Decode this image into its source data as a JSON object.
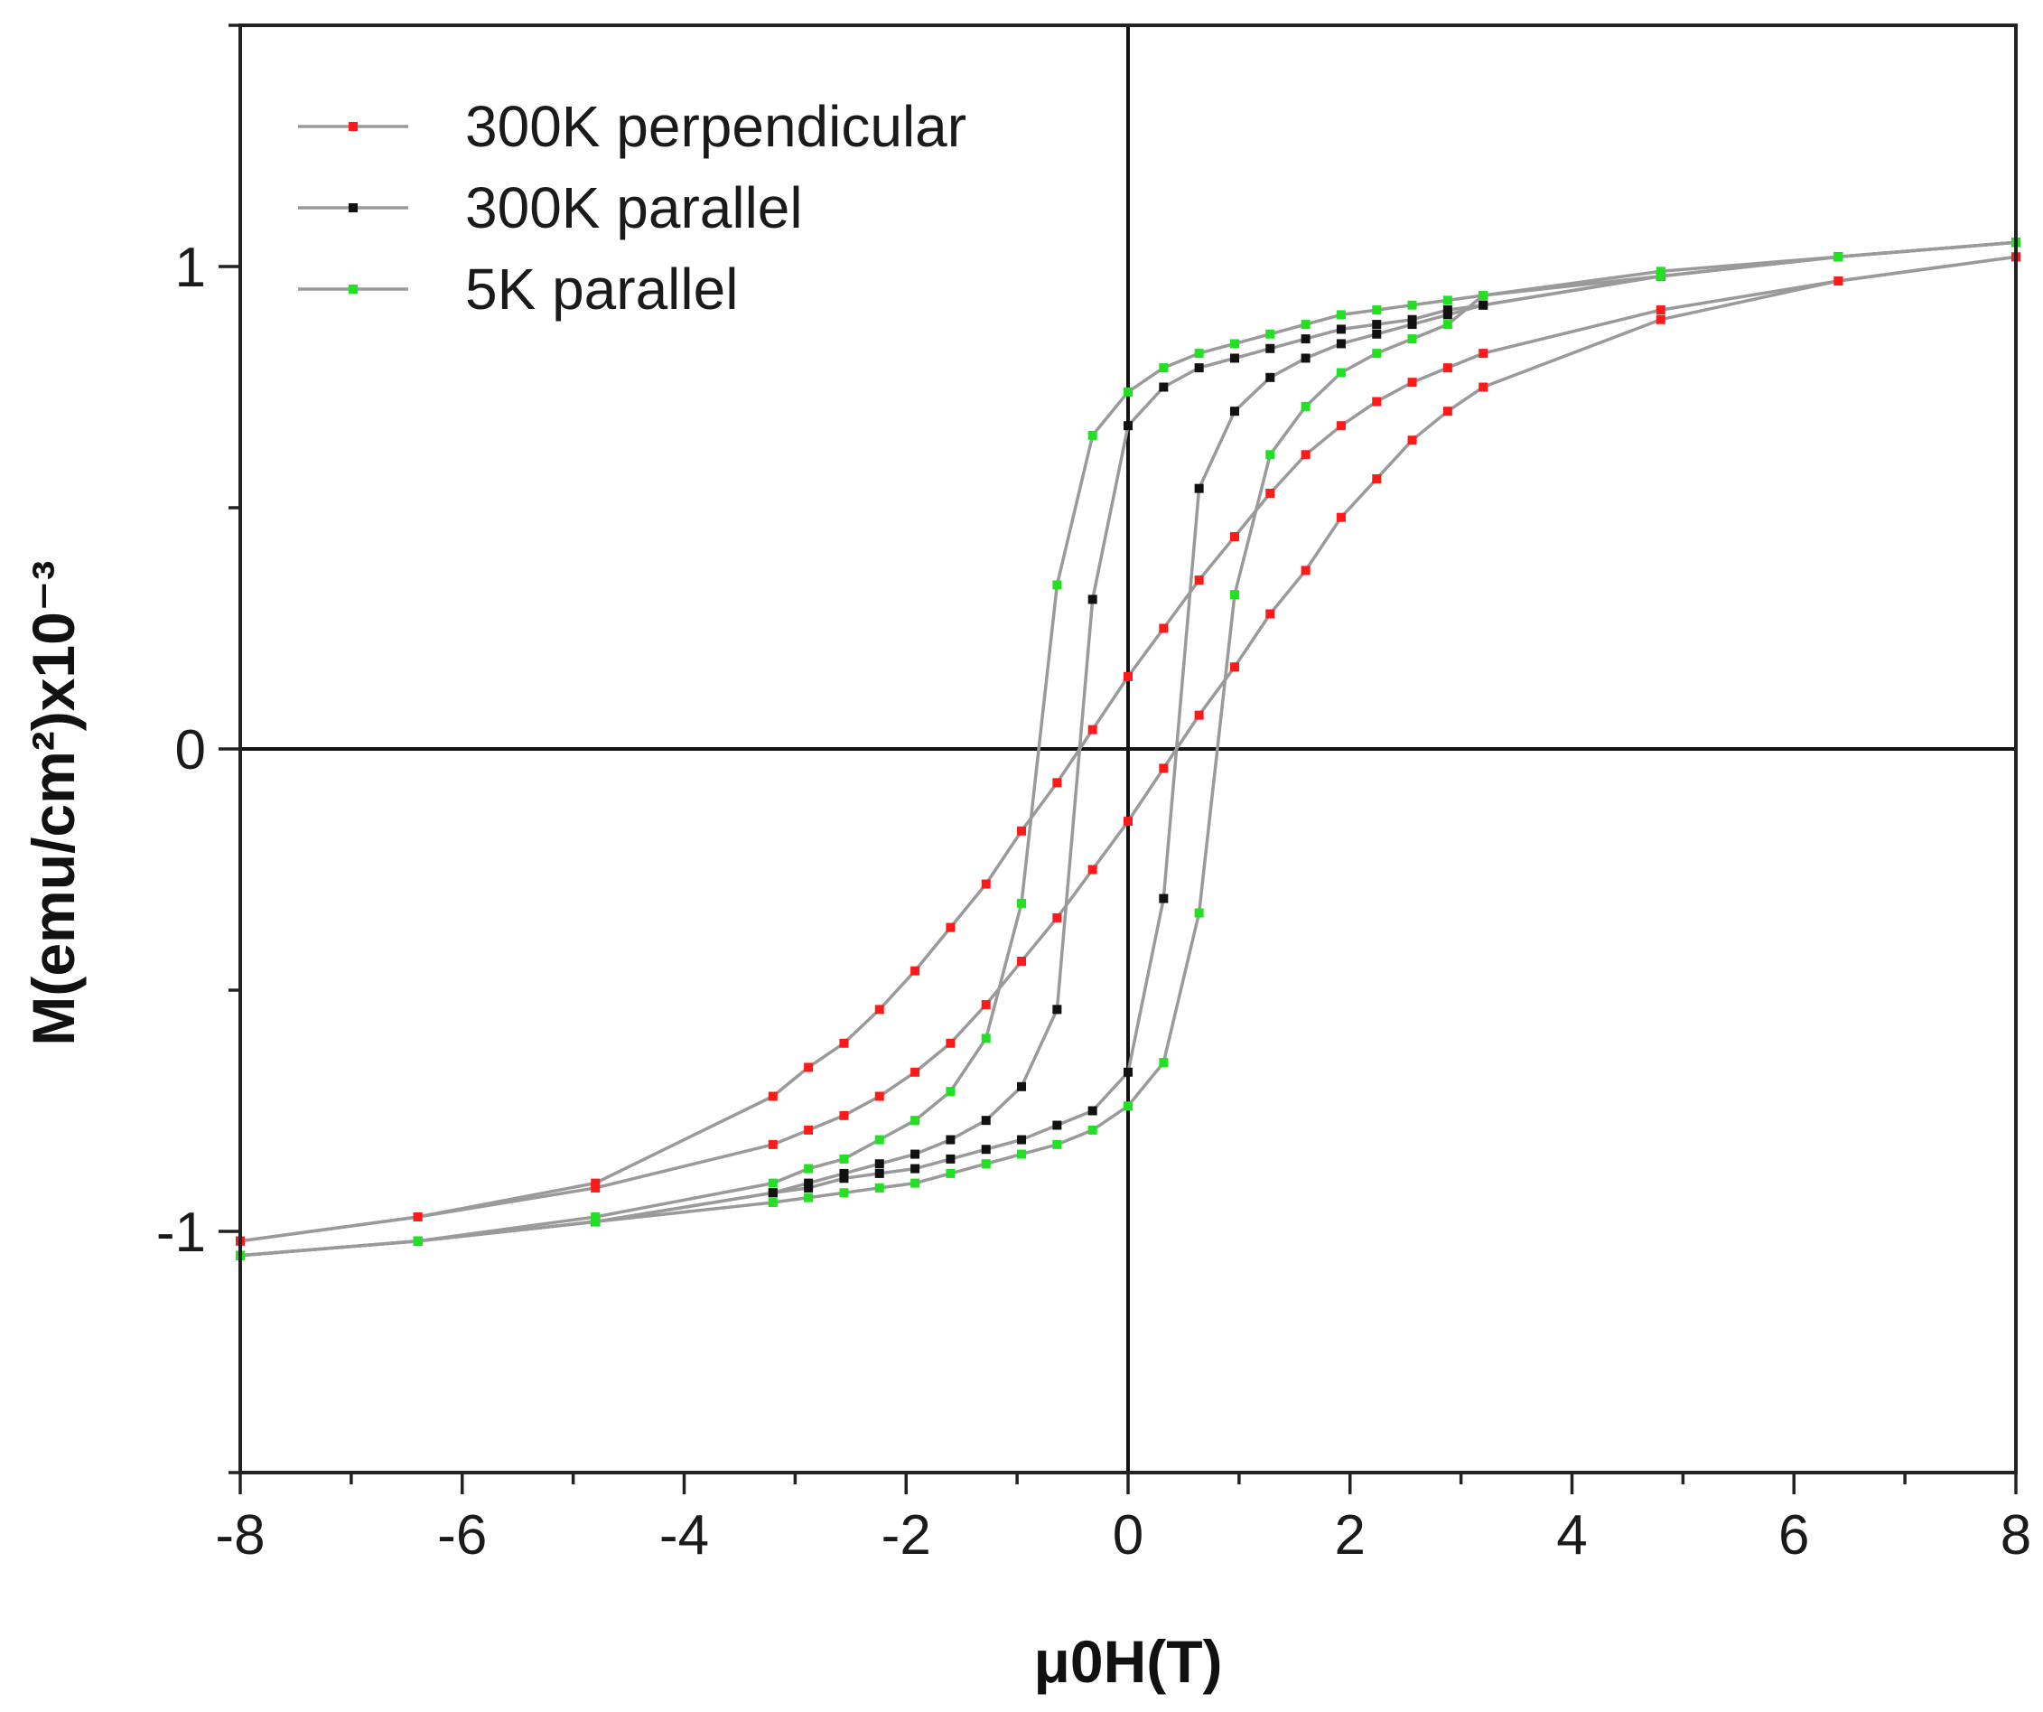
{
  "chart_data": {
    "type": "line",
    "title": "",
    "xlabel": "μ0H(T)",
    "ylabel": "M(emu/cm²)x10⁻³",
    "xlim": [
      -8,
      8
    ],
    "ylim": [
      -1.5,
      1.5
    ],
    "x_ticks": [
      -8,
      -6,
      -4,
      -2,
      0,
      2,
      4,
      6,
      8
    ],
    "x_tick_labels": [
      "-8",
      "-6",
      "-4",
      "-2",
      "0",
      "2",
      "4",
      "6",
      "8"
    ],
    "y_ticks": [
      -1,
      0,
      1
    ],
    "y_tick_labels": [
      "-1",
      "0",
      "1"
    ],
    "grid": false,
    "zero_lines": true,
    "legend_position": "top-left",
    "series": [
      {
        "name": "300K perpendicular",
        "color": "#ff1a1a",
        "descending": [
          [
            8,
            1.02
          ],
          [
            6.4,
            0.97
          ],
          [
            4.8,
            0.91
          ],
          [
            3.2,
            0.82
          ],
          [
            2.88,
            0.79
          ],
          [
            2.56,
            0.76
          ],
          [
            2.24,
            0.72
          ],
          [
            1.92,
            0.67
          ],
          [
            1.6,
            0.61
          ],
          [
            1.28,
            0.53
          ],
          [
            0.96,
            0.44
          ],
          [
            0.64,
            0.35
          ],
          [
            0.32,
            0.25
          ],
          [
            0,
            0.15
          ],
          [
            -0.32,
            0.04
          ],
          [
            -0.64,
            -0.07
          ],
          [
            -0.96,
            -0.17
          ],
          [
            -1.28,
            -0.28
          ],
          [
            -1.6,
            -0.37
          ],
          [
            -1.92,
            -0.46
          ],
          [
            -2.24,
            -0.54
          ],
          [
            -2.56,
            -0.61
          ],
          [
            -2.88,
            -0.66
          ],
          [
            -3.2,
            -0.72
          ],
          [
            -4.8,
            -0.9
          ],
          [
            -6.4,
            -0.97
          ],
          [
            -8,
            -1.02
          ]
        ],
        "ascending": [
          [
            -8,
            -1.02
          ],
          [
            -6.4,
            -0.97
          ],
          [
            -4.8,
            -0.91
          ],
          [
            -3.2,
            -0.82
          ],
          [
            -2.88,
            -0.79
          ],
          [
            -2.56,
            -0.76
          ],
          [
            -2.24,
            -0.72
          ],
          [
            -1.92,
            -0.67
          ],
          [
            -1.6,
            -0.61
          ],
          [
            -1.28,
            -0.53
          ],
          [
            -0.96,
            -0.44
          ],
          [
            -0.64,
            -0.35
          ],
          [
            -0.32,
            -0.25
          ],
          [
            0,
            -0.15
          ],
          [
            0.32,
            -0.04
          ],
          [
            0.64,
            0.07
          ],
          [
            0.96,
            0.17
          ],
          [
            1.28,
            0.28
          ],
          [
            1.6,
            0.37
          ],
          [
            1.92,
            0.48
          ],
          [
            2.24,
            0.56
          ],
          [
            2.56,
            0.64
          ],
          [
            2.88,
            0.7
          ],
          [
            3.2,
            0.75
          ],
          [
            4.8,
            0.89
          ],
          [
            6.4,
            0.97
          ],
          [
            8,
            1.02
          ]
        ]
      },
      {
        "name": "300K parallel",
        "color": "#111111",
        "descending": [
          [
            8,
            1.05
          ],
          [
            6.4,
            1.02
          ],
          [
            4.8,
            0.98
          ],
          [
            3.2,
            0.92
          ],
          [
            2.88,
            0.91
          ],
          [
            2.56,
            0.89
          ],
          [
            2.24,
            0.88
          ],
          [
            1.92,
            0.87
          ],
          [
            1.6,
            0.85
          ],
          [
            1.28,
            0.83
          ],
          [
            0.96,
            0.81
          ],
          [
            0.64,
            0.79
          ],
          [
            0.32,
            0.75
          ],
          [
            0,
            0.67
          ],
          [
            -0.32,
            0.31
          ],
          [
            -0.64,
            -0.54
          ],
          [
            -0.96,
            -0.7
          ],
          [
            -1.28,
            -0.77
          ],
          [
            -1.6,
            -0.81
          ],
          [
            -1.92,
            -0.84
          ],
          [
            -2.24,
            -0.86
          ],
          [
            -2.56,
            -0.88
          ],
          [
            -2.88,
            -0.9
          ],
          [
            -3.2,
            -0.92
          ],
          [
            -4.8,
            -0.98
          ],
          [
            -6.4,
            -1.02
          ],
          [
            -8,
            -1.05
          ]
        ],
        "ascending": [
          [
            -8,
            -1.05
          ],
          [
            -6.4,
            -1.02
          ],
          [
            -4.8,
            -0.98
          ],
          [
            -3.2,
            -0.92
          ],
          [
            -2.88,
            -0.91
          ],
          [
            -2.56,
            -0.89
          ],
          [
            -2.24,
            -0.88
          ],
          [
            -1.92,
            -0.87
          ],
          [
            -1.6,
            -0.85
          ],
          [
            -1.28,
            -0.83
          ],
          [
            -0.96,
            -0.81
          ],
          [
            -0.64,
            -0.78
          ],
          [
            -0.32,
            -0.75
          ],
          [
            0,
            -0.67
          ],
          [
            0.32,
            -0.31
          ],
          [
            0.64,
            0.54
          ],
          [
            0.96,
            0.7
          ],
          [
            1.28,
            0.77
          ],
          [
            1.6,
            0.81
          ],
          [
            1.92,
            0.84
          ],
          [
            2.24,
            0.86
          ],
          [
            2.56,
            0.88
          ],
          [
            2.88,
            0.9
          ],
          [
            3.2,
            0.92
          ],
          [
            4.8,
            0.98
          ],
          [
            6.4,
            1.02
          ],
          [
            8,
            1.05
          ]
        ]
      },
      {
        "name": "5K parallel",
        "color": "#22e022",
        "descending": [
          [
            8,
            1.05
          ],
          [
            6.4,
            1.02
          ],
          [
            4.8,
            0.98
          ],
          [
            3.2,
            0.94
          ],
          [
            2.88,
            0.93
          ],
          [
            2.56,
            0.92
          ],
          [
            2.24,
            0.91
          ],
          [
            1.92,
            0.9
          ],
          [
            1.6,
            0.88
          ],
          [
            1.28,
            0.86
          ],
          [
            0.96,
            0.84
          ],
          [
            0.64,
            0.82
          ],
          [
            0.32,
            0.79
          ],
          [
            0,
            0.74
          ],
          [
            -0.32,
            0.65
          ],
          [
            -0.64,
            0.34
          ],
          [
            -0.96,
            -0.32
          ],
          [
            -1.28,
            -0.6
          ],
          [
            -1.6,
            -0.71
          ],
          [
            -1.92,
            -0.77
          ],
          [
            -2.24,
            -0.81
          ],
          [
            -2.56,
            -0.85
          ],
          [
            -2.88,
            -0.87
          ],
          [
            -3.2,
            -0.9
          ],
          [
            -4.8,
            -0.97
          ],
          [
            -6.4,
            -1.02
          ],
          [
            -8,
            -1.05
          ]
        ],
        "ascending": [
          [
            -8,
            -1.05
          ],
          [
            -6.4,
            -1.02
          ],
          [
            -4.8,
            -0.98
          ],
          [
            -3.2,
            -0.94
          ],
          [
            -2.88,
            -0.93
          ],
          [
            -2.56,
            -0.92
          ],
          [
            -2.24,
            -0.91
          ],
          [
            -1.92,
            -0.9
          ],
          [
            -1.6,
            -0.88
          ],
          [
            -1.28,
            -0.86
          ],
          [
            -0.96,
            -0.84
          ],
          [
            -0.64,
            -0.82
          ],
          [
            -0.32,
            -0.79
          ],
          [
            0,
            -0.74
          ],
          [
            0.32,
            -0.65
          ],
          [
            0.64,
            -0.34
          ],
          [
            0.96,
            0.32
          ],
          [
            1.28,
            0.61
          ],
          [
            1.6,
            0.71
          ],
          [
            1.92,
            0.78
          ],
          [
            2.24,
            0.82
          ],
          [
            2.56,
            0.85
          ],
          [
            2.88,
            0.88
          ],
          [
            3.2,
            0.94
          ],
          [
            4.8,
            0.99
          ],
          [
            6.4,
            1.02
          ],
          [
            8,
            1.05
          ]
        ]
      }
    ]
  }
}
